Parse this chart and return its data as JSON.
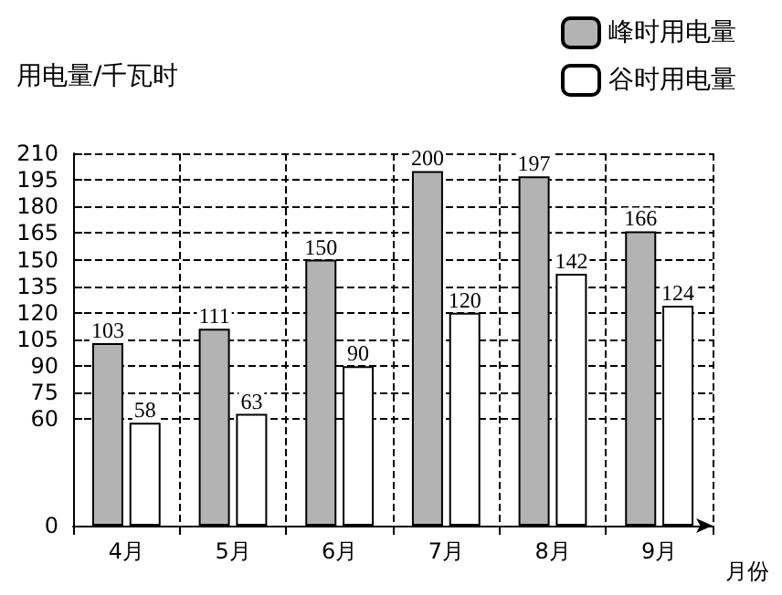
{
  "chart_data": {
    "type": "bar",
    "ylabel": "用电量/千瓦时",
    "xlabel": "月份",
    "categories": [
      "4月",
      "5月",
      "6月",
      "7月",
      "8月",
      "9月"
    ],
    "series": [
      {
        "name": "峰时用电量",
        "color": "#b3b3b3",
        "values": [
          103,
          111,
          150,
          200,
          197,
          166
        ]
      },
      {
        "name": "谷时用电量",
        "color": "#ffffff",
        "values": [
          58,
          63,
          90,
          120,
          142,
          124
        ]
      }
    ],
    "ylim": [
      0,
      210
    ],
    "yticks": [
      0,
      60,
      75,
      90,
      105,
      120,
      135,
      150,
      165,
      180,
      195,
      210
    ],
    "grid": true,
    "legend": "top right",
    "data_labels": true
  }
}
